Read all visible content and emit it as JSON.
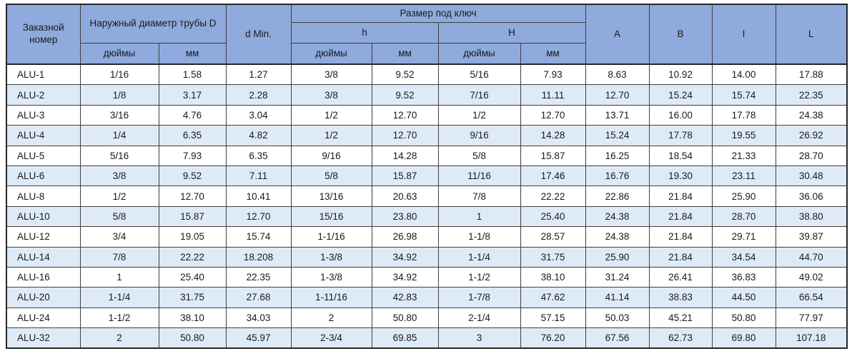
{
  "colors": {
    "header_bg": "#8FAADC",
    "row_alt_bg": "#DEEBF7",
    "row_bg": "#FFFFFF",
    "border": "#3F3F3F",
    "text": "#1A1A1A"
  },
  "table": {
    "header": {
      "order_number": "Заказной номер",
      "outer_diameter": "Наружный диаметр трубы D",
      "d_min": "d Min.",
      "wrench_size": "Размер под ключ",
      "h_lower": "h",
      "h_upper": "H",
      "inches": "дюймы",
      "mm": "мм",
      "col_a": "A",
      "col_b": "B",
      "col_l_small": "l",
      "col_l_big": "L"
    },
    "rows": [
      [
        "ALU-1",
        "1/16",
        "1.58",
        "1.27",
        "3/8",
        "9.52",
        "5/16",
        "7.93",
        "8.63",
        "10.92",
        "14.00",
        "17.88"
      ],
      [
        "ALU-2",
        "1/8",
        "3.17",
        "2.28",
        "3/8",
        "9.52",
        "7/16",
        "11.11",
        "12.70",
        "15.24",
        "15.74",
        "22.35"
      ],
      [
        "ALU-3",
        "3/16",
        "4.76",
        "3.04",
        "1/2",
        "12.70",
        "1/2",
        "12.70",
        "13.71",
        "16.00",
        "17.78",
        "24.38"
      ],
      [
        "ALU-4",
        "1/4",
        "6.35",
        "4.82",
        "1/2",
        "12.70",
        "9/16",
        "14.28",
        "15.24",
        "17.78",
        "19.55",
        "26.92"
      ],
      [
        "ALU-5",
        "5/16",
        "7.93",
        "6.35",
        "9/16",
        "14.28",
        "5/8",
        "15.87",
        "16.25",
        "18.54",
        "21.33",
        "28.70"
      ],
      [
        "ALU-6",
        "3/8",
        "9.52",
        "7.11",
        "5/8",
        "15.87",
        "11/16",
        "17.46",
        "16.76",
        "19.30",
        "23.11",
        "30.48"
      ],
      [
        "ALU-8",
        "1/2",
        "12.70",
        "10.41",
        "13/16",
        "20.63",
        "7/8",
        "22.22",
        "22.86",
        "21.84",
        "25.90",
        "36.06"
      ],
      [
        "ALU-10",
        "5/8",
        "15.87",
        "12.70",
        "15/16",
        "23.80",
        "1",
        "25.40",
        "24.38",
        "21.84",
        "28.70",
        "38.80"
      ],
      [
        "ALU-12",
        "3/4",
        "19.05",
        "15.74",
        "1-1/16",
        "26.98",
        "1-1/8",
        "28.57",
        "24.38",
        "21.84",
        "29.71",
        "39.87"
      ],
      [
        "ALU-14",
        "7/8",
        "22.22",
        "18.208",
        "1-3/8",
        "34.92",
        "1-1/4",
        "31.75",
        "25.90",
        "21.84",
        "34.54",
        "44.70"
      ],
      [
        "ALU-16",
        "1",
        "25.40",
        "22.35",
        "1-3/8",
        "34.92",
        "1-1/2",
        "38.10",
        "31.24",
        "26.41",
        "36.83",
        "49.02"
      ],
      [
        "ALU-20",
        "1-1/4",
        "31.75",
        "27.68",
        "1-11/16",
        "42.83",
        "1-7/8",
        "47.62",
        "41.14",
        "38.83",
        "44.50",
        "66.54"
      ],
      [
        "ALU-24",
        "1-1/2",
        "38.10",
        "34.03",
        "2",
        "50.80",
        "2-1/4",
        "57.15",
        "50.03",
        "45.21",
        "50.80",
        "77.97"
      ],
      [
        "ALU-32",
        "2",
        "50.80",
        "45.97",
        "2-3/4",
        "69.85",
        "3",
        "76.20",
        "67.56",
        "62.73",
        "69.80",
        "107.18"
      ]
    ]
  }
}
